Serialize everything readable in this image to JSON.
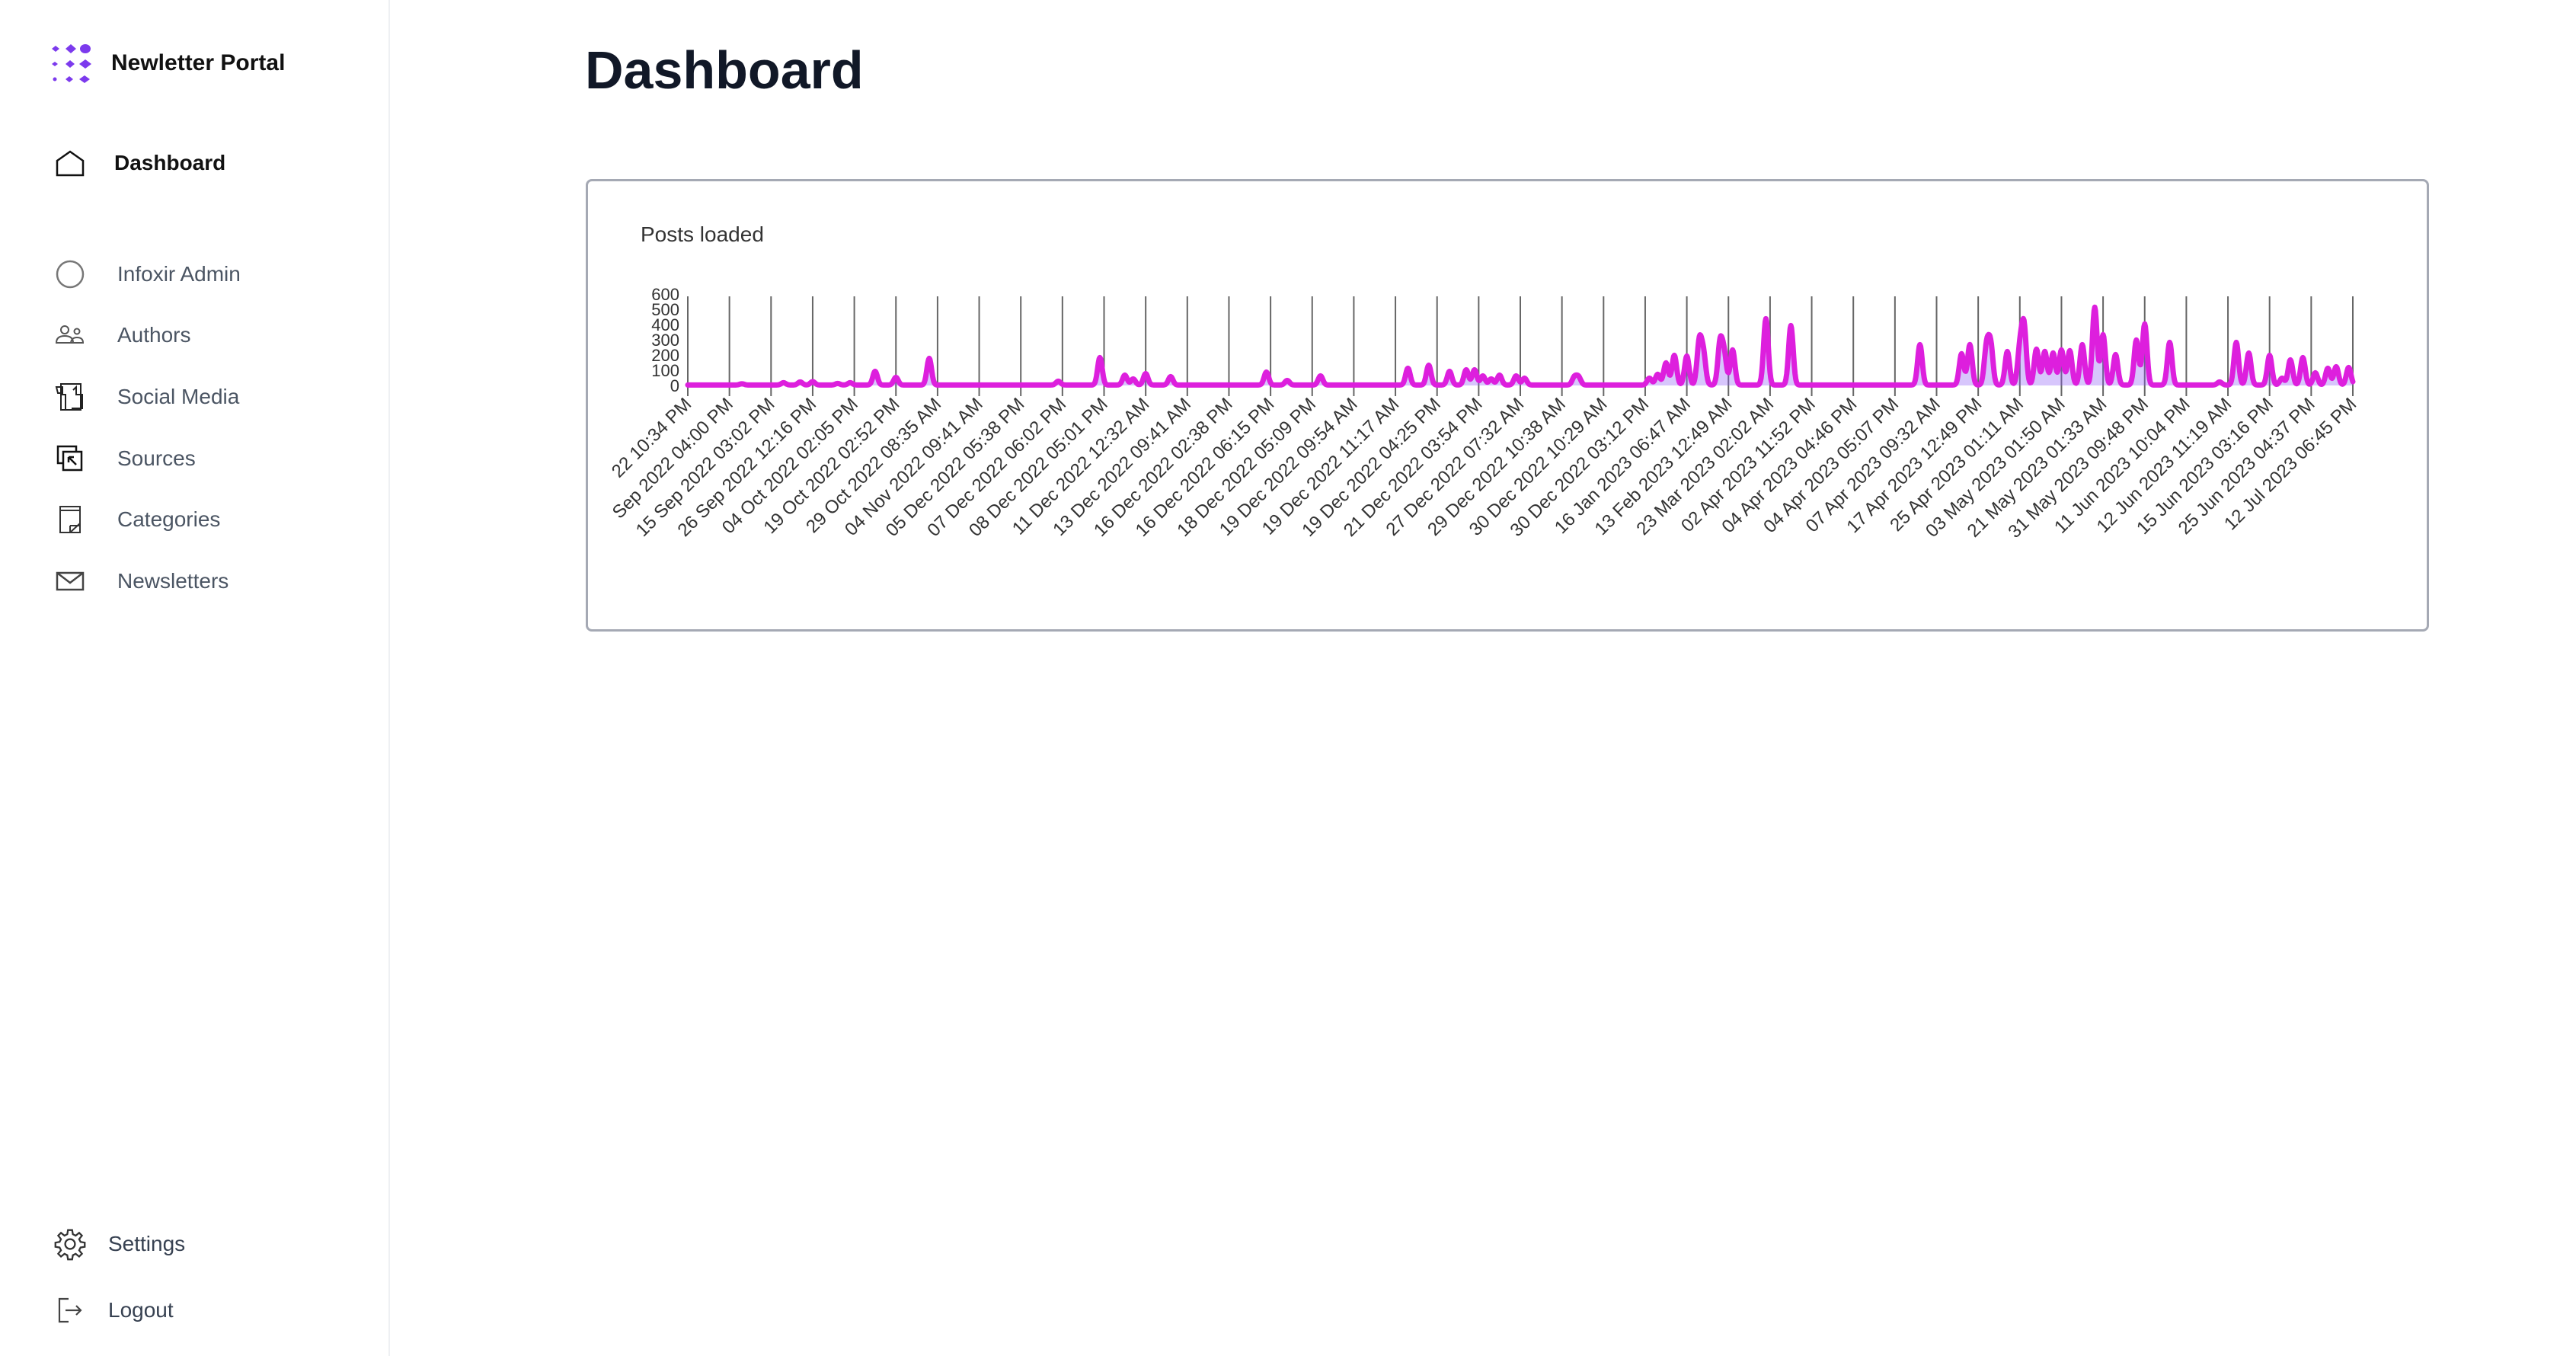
{
  "sidebar": {
    "brand": "Newletter Portal",
    "primary": {
      "label": "Dashboard",
      "icon": "home-icon"
    },
    "items": [
      {
        "label": "Infoxir Admin",
        "icon": "circle-icon"
      },
      {
        "label": "Authors",
        "icon": "users-icon"
      },
      {
        "label": "Social Media",
        "icon": "thumbs-up-icon"
      },
      {
        "label": "Sources",
        "icon": "sources-icon"
      },
      {
        "label": "Categories",
        "icon": "note-icon"
      },
      {
        "label": "Newsletters",
        "icon": "mail-icon"
      }
    ],
    "bottom": [
      {
        "label": "Settings",
        "icon": "gear-icon"
      },
      {
        "label": "Logout",
        "icon": "logout-icon"
      }
    ]
  },
  "main": {
    "title": "Dashboard"
  },
  "colors": {
    "accent": "#7c3aed",
    "series": "#dd1fdd",
    "grid": "#666666"
  },
  "chart_data": {
    "type": "area",
    "title": "Posts loaded",
    "ylim": [
      0,
      600
    ],
    "yticks": [
      "600",
      "500",
      "400",
      "300",
      "200",
      "100",
      "0"
    ],
    "grid": "vertical",
    "categories": [
      "22 10:34 PM",
      "Sep 2022 04:00 PM",
      "15 Sep 2022 03:02 PM",
      "26 Sep 2022 12:16 PM",
      "04 Oct 2022 02:05 PM",
      "19 Oct 2022 02:52 PM",
      "29 Oct 2022 08:35 AM",
      "04 Nov 2022 09:41 AM",
      "05 Dec 2022 05:38 PM",
      "07 Dec 2022 06:02 PM",
      "08 Dec 2022 05:01 PM",
      "11 Dec 2022 12:32 AM",
      "13 Dec 2022 09:41 AM",
      "16 Dec 2022 02:38 PM",
      "16 Dec 2022 06:15 PM",
      "18 Dec 2022 05:09 PM",
      "19 Dec 2022 09:54 AM",
      "19 Dec 2022 11:17 AM",
      "19 Dec 2022 04:25 PM",
      "21 Dec 2022 03:54 PM",
      "27 Dec 2022 07:32 AM",
      "29 Dec 2022 10:38 AM",
      "30 Dec 2022 10:29 AM",
      "30 Dec 2022 03:12 PM",
      "16 Jan 2023 06:47 AM",
      "13 Feb 2023 12:49 AM",
      "23 Mar 2023 02:02 AM",
      "02 Apr 2023 11:52 PM",
      "04 Apr 2023 04:46 PM",
      "04 Apr 2023 05:07 PM",
      "07 Apr 2023 09:32 AM",
      "17 Apr 2023 12:49 PM",
      "25 Apr 2023 01:11 AM",
      "03 May 2023 01:50 AM",
      "21 May 2023 01:33 AM",
      "31 May 2023 09:48 PM",
      "11 Jun 2023 10:04 PM",
      "12 Jun 2023 11:19 AM",
      "15 Jun 2023 03:16 PM",
      "25 Jun 2023 04:37 PM",
      "12 Jul 2023 06:45 PM"
    ],
    "peaks": [
      [
        1.3,
        8
      ],
      [
        2.3,
        15
      ],
      [
        2.7,
        20
      ],
      [
        3.0,
        22
      ],
      [
        3.6,
        10
      ],
      [
        3.9,
        15
      ],
      [
        4.5,
        90
      ],
      [
        5.0,
        50
      ],
      [
        5.8,
        175
      ],
      [
        8.9,
        25
      ],
      [
        9.9,
        180
      ],
      [
        10.5,
        65
      ],
      [
        10.7,
        40
      ],
      [
        11.0,
        75
      ],
      [
        11.6,
        55
      ],
      [
        13.9,
        85
      ],
      [
        14.4,
        30
      ],
      [
        15.2,
        60
      ],
      [
        17.3,
        110
      ],
      [
        17.8,
        130
      ],
      [
        18.3,
        90
      ],
      [
        18.7,
        100
      ],
      [
        18.9,
        100
      ],
      [
        19.1,
        60
      ],
      [
        19.3,
        40
      ],
      [
        19.5,
        65
      ],
      [
        19.9,
        60
      ],
      [
        20.1,
        45
      ],
      [
        21.3,
        50
      ],
      [
        21.4,
        50
      ],
      [
        23.1,
        45
      ],
      [
        23.3,
        70
      ],
      [
        23.5,
        145
      ],
      [
        23.7,
        195
      ],
      [
        24.0,
        190
      ],
      [
        24.3,
        280
      ],
      [
        24.4,
        195
      ],
      [
        24.8,
        275
      ],
      [
        24.9,
        190
      ],
      [
        25.1,
        230
      ],
      [
        25.9,
        435
      ],
      [
        26.5,
        390
      ],
      [
        29.6,
        265
      ],
      [
        30.6,
        205
      ],
      [
        30.8,
        265
      ],
      [
        31.2,
        245
      ],
      [
        31.3,
        255
      ],
      [
        31.7,
        220
      ],
      [
        32.0,
        230
      ],
      [
        32.1,
        380
      ],
      [
        32.4,
        235
      ],
      [
        32.6,
        220
      ],
      [
        32.8,
        210
      ],
      [
        33.0,
        230
      ],
      [
        33.2,
        225
      ],
      [
        33.5,
        265
      ],
      [
        33.8,
        510
      ],
      [
        34.0,
        330
      ],
      [
        34.3,
        200
      ],
      [
        34.8,
        295
      ],
      [
        35.0,
        400
      ],
      [
        35.6,
        280
      ],
      [
        36.8,
        20
      ],
      [
        37.2,
        280
      ],
      [
        37.5,
        210
      ],
      [
        38.0,
        195
      ],
      [
        38.3,
        45
      ],
      [
        38.5,
        165
      ],
      [
        38.8,
        180
      ],
      [
        39.1,
        80
      ],
      [
        39.4,
        110
      ],
      [
        39.6,
        120
      ],
      [
        39.9,
        115
      ]
    ]
  }
}
